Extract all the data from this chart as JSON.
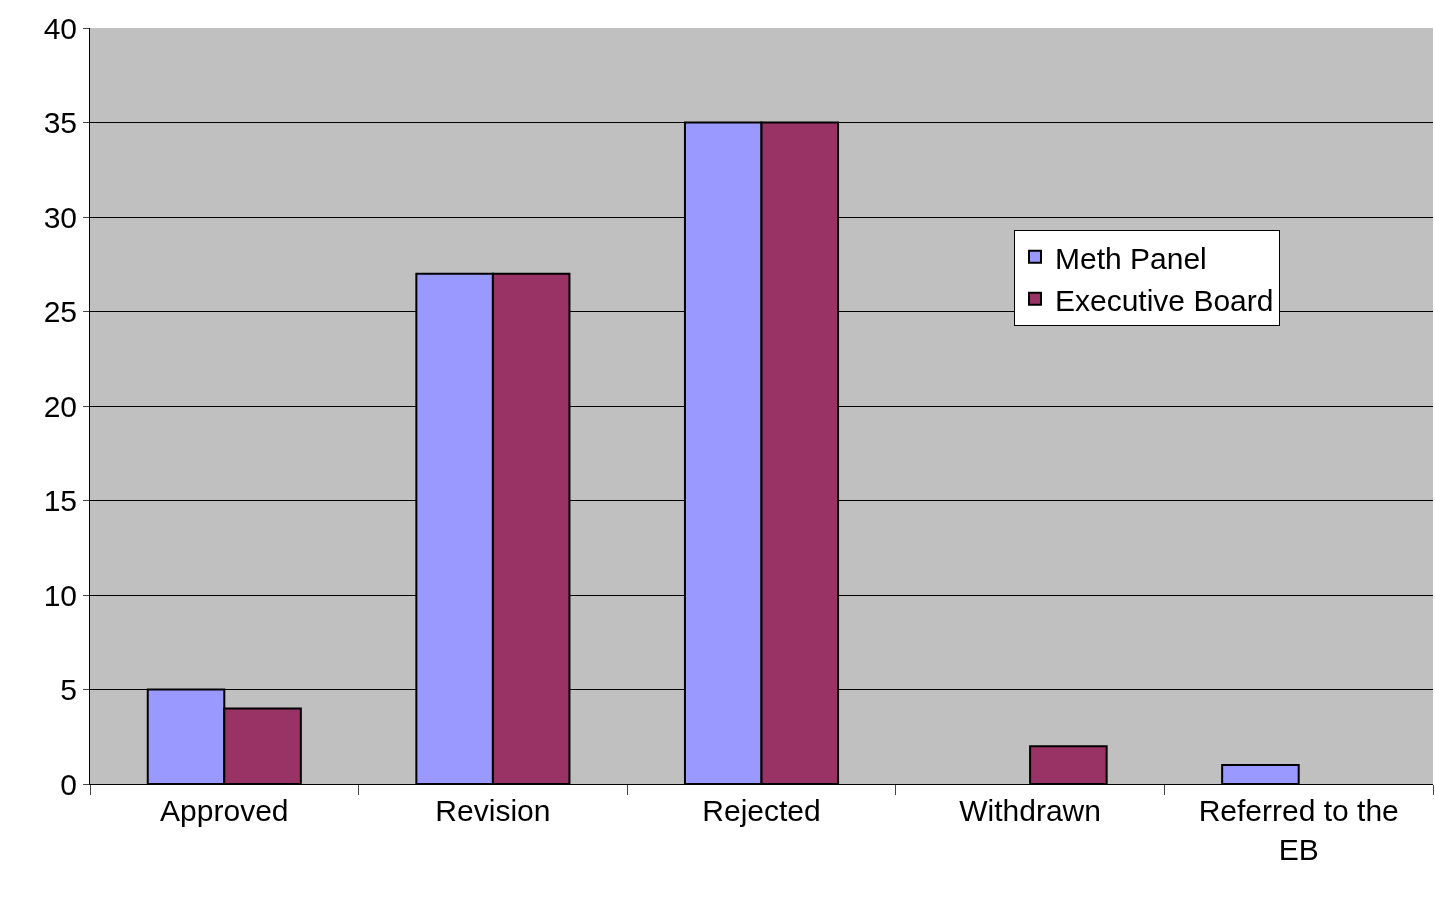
{
  "chart_data": {
    "type": "bar",
    "categories": [
      "Approved",
      "Revision",
      "Rejected",
      "Withdrawn",
      "Referred to the EB"
    ],
    "series": [
      {
        "name": "Meth Panel",
        "color": "#9999ff",
        "values": [
          5,
          27,
          35,
          null,
          1
        ]
      },
      {
        "name": "Executive Board",
        "color": "#993366",
        "values": [
          4,
          27,
          35,
          2,
          null
        ]
      }
    ],
    "ylim": [
      0,
      40
    ],
    "yticks": [
      0,
      5,
      10,
      15,
      20,
      25,
      30,
      35,
      40
    ],
    "grid": "y",
    "legend": "top right"
  }
}
